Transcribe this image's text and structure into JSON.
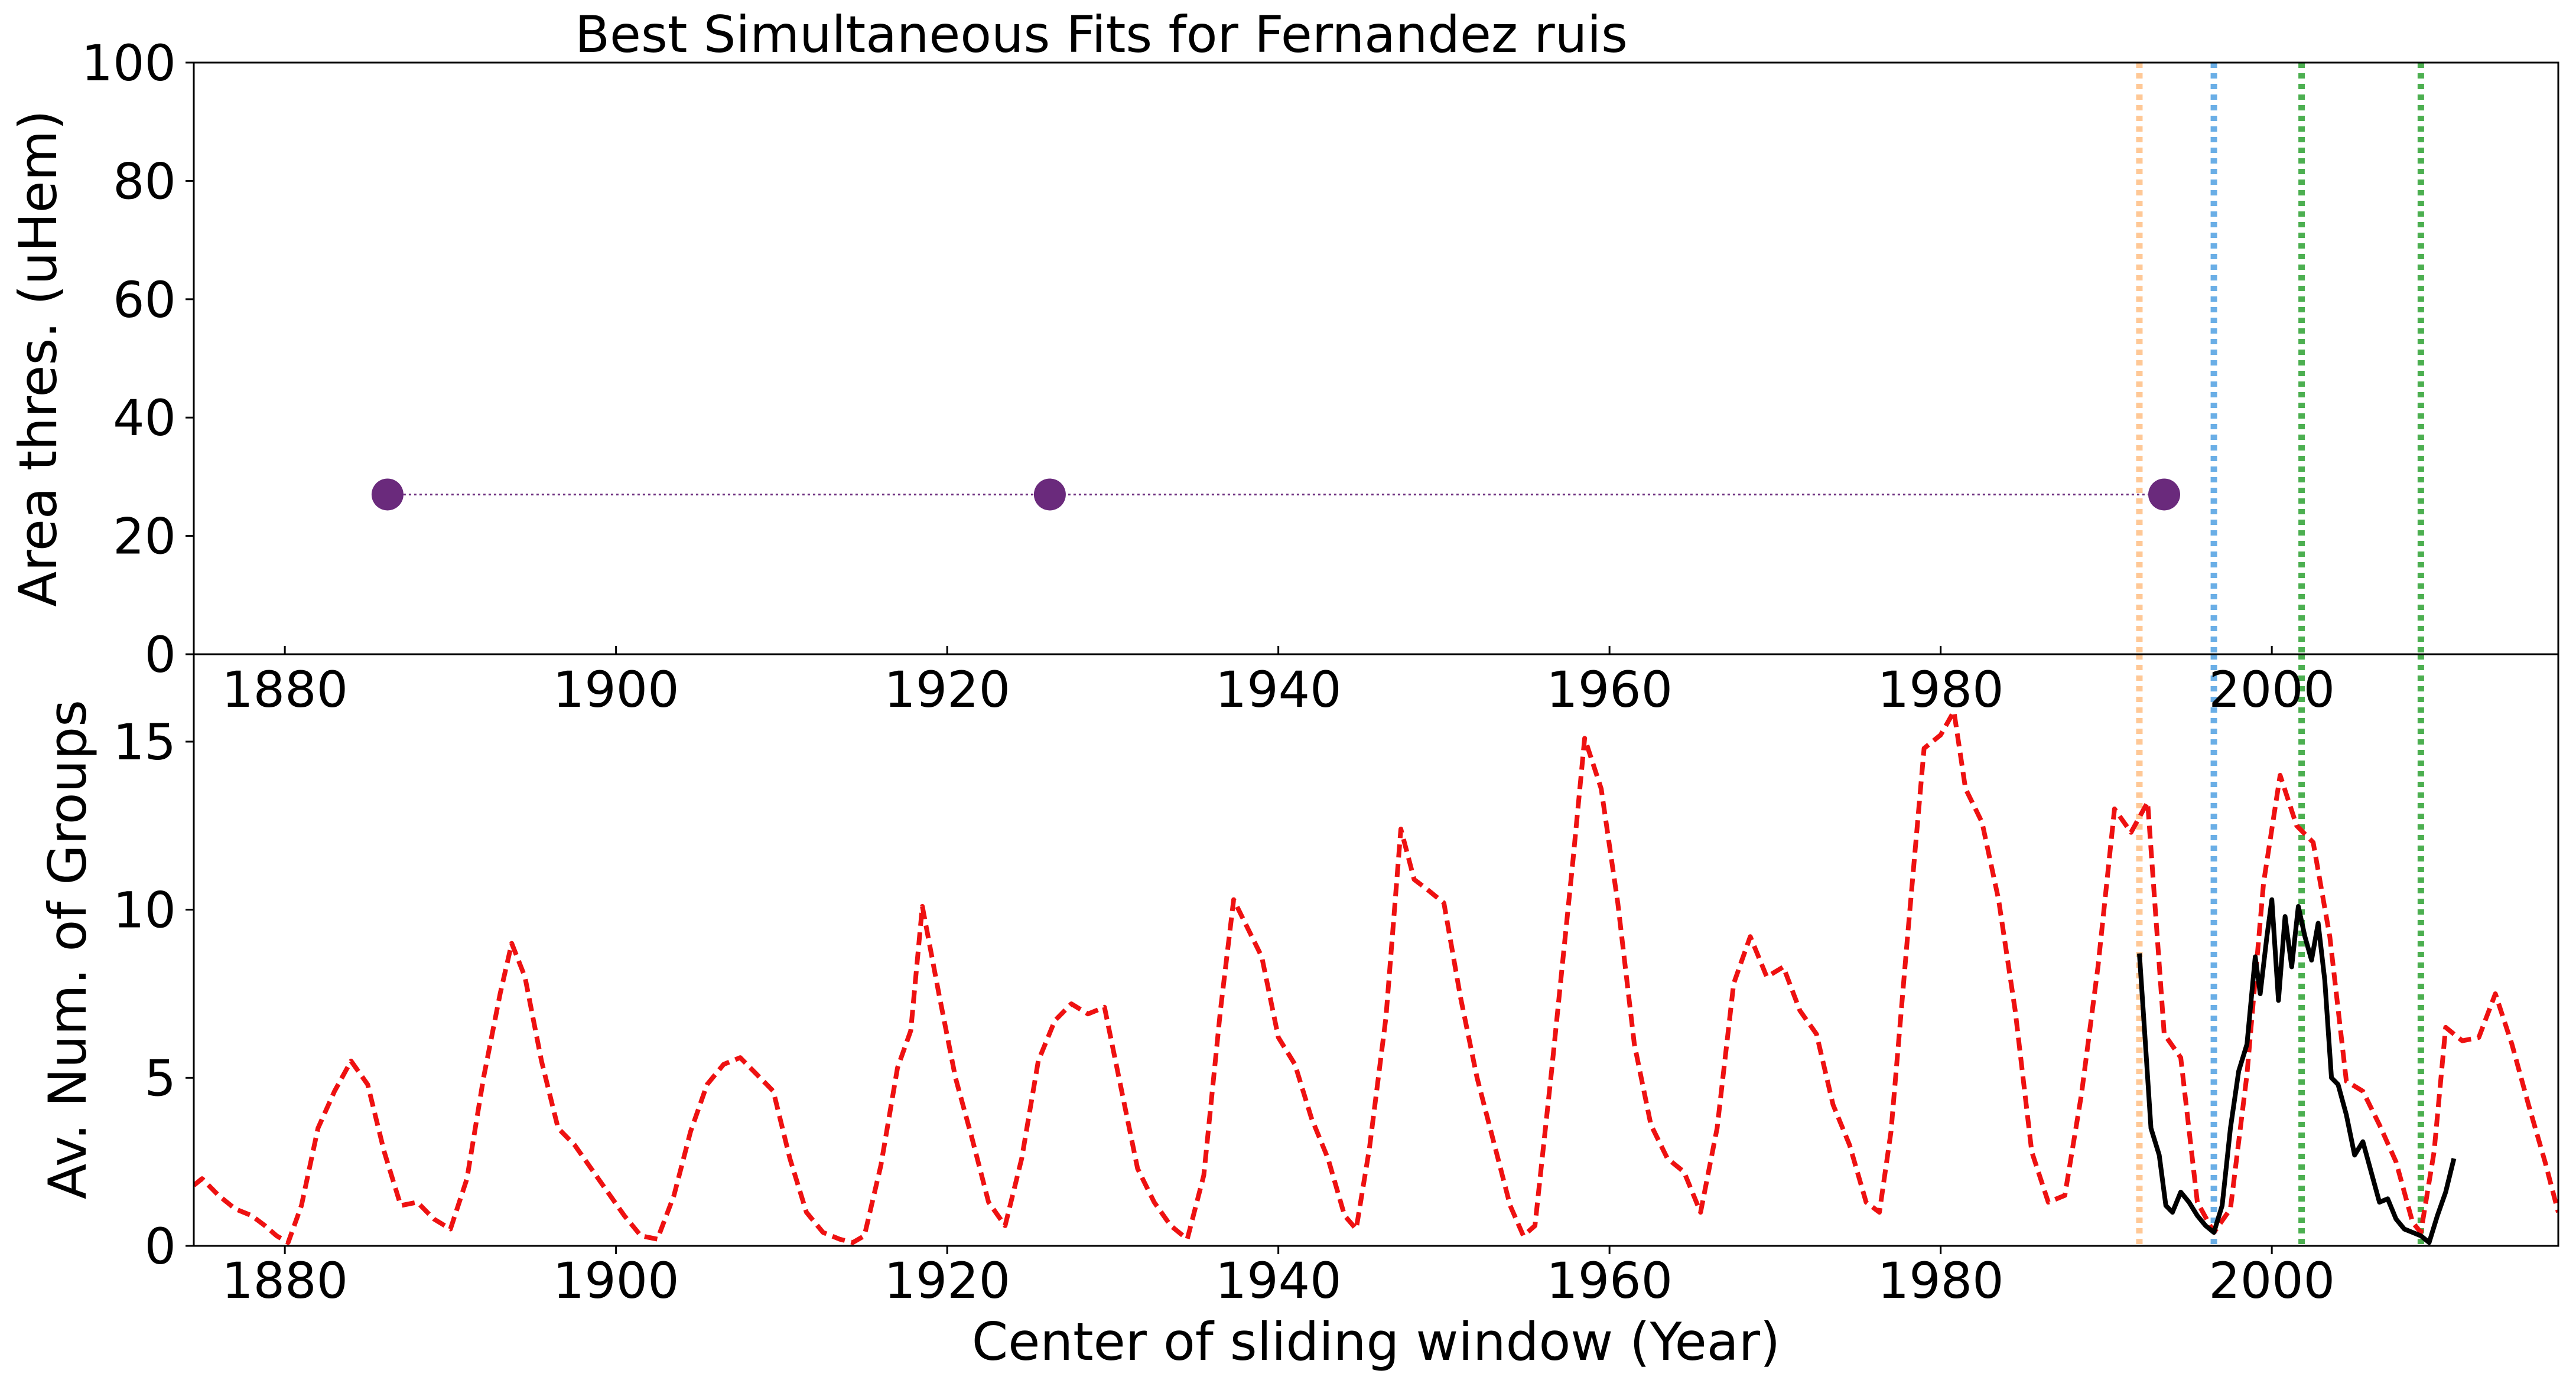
{
  "chart_data": [
    {
      "type": "scatter",
      "title": "Best Simultaneous Fits for Fernandez ruis",
      "xlabel": "",
      "ylabel": "Area thres. (uHem)",
      "xlim": [
        1874.5,
        2017.3
      ],
      "ylim": [
        0,
        100
      ],
      "x_ticks": [
        1880,
        1900,
        1920,
        1940,
        1960,
        1980,
        2000
      ],
      "x_tick_labels": [
        "1880",
        "1900",
        "1920",
        "1940",
        "1960",
        "1980",
        "2000"
      ],
      "y_ticks": [
        0,
        20,
        40,
        60,
        80,
        100
      ],
      "y_tick_labels": [
        "0",
        "20",
        "40",
        "60",
        "80",
        "100"
      ],
      "grid": false,
      "series": [
        {
          "x": [
            1886.2,
            1926.2,
            1993.5
          ],
          "y": [
            27,
            27,
            27
          ],
          "color": "#6a2a7c",
          "marker": "circle",
          "connect": "dotted"
        }
      ],
      "vlines": [
        {
          "x": 1992.0,
          "color": "#ffc896",
          "style": "dotted"
        },
        {
          "x": 1996.5,
          "color": "#6aaee6",
          "style": "dotted"
        },
        {
          "x": 2001.8,
          "color": "#4caf50",
          "style": "dotted"
        },
        {
          "x": 2009.0,
          "color": "#4caf50",
          "style": "dotted"
        }
      ]
    },
    {
      "type": "line",
      "title": "",
      "xlabel": "Center of sliding window (Year)",
      "ylabel": "Av. Num. of Groups",
      "xlim": [
        1874.5,
        2017.3
      ],
      "ylim": [
        0,
        17.6
      ],
      "x_ticks": [
        1880,
        1900,
        1920,
        1940,
        1960,
        1980,
        2000
      ],
      "x_tick_labels": [
        "1880",
        "1900",
        "1920",
        "1940",
        "1960",
        "1980",
        "2000"
      ],
      "y_ticks": [
        0,
        5,
        10,
        15
      ],
      "y_tick_labels": [
        "0",
        "5",
        "10",
        "15"
      ],
      "grid": false,
      "series": [
        {
          "color": "#ee1111",
          "style": "dashed",
          "x": [
            1874.5,
            1875,
            1876,
            1877,
            1878,
            1878.8,
            1879.5,
            1880.2,
            1881,
            1882,
            1883,
            1884,
            1885,
            1886,
            1887,
            1888,
            1889,
            1890,
            1891,
            1892,
            1893,
            1893.7,
            1894.5,
            1895.5,
            1896.5,
            1897.5,
            1898.5,
            1899.5,
            1900.5,
            1901.5,
            1902.5,
            1903.5,
            1904.5,
            1905.5,
            1906.5,
            1907.5,
            1908.5,
            1909.5,
            1910.5,
            1911.5,
            1912.5,
            1913.5,
            1914.3,
            1915,
            1916,
            1917,
            1917.8,
            1918.5,
            1919.5,
            1920.5,
            1921.5,
            1922.5,
            1923.5,
            1924.5,
            1925.5,
            1926.5,
            1927.5,
            1928.5,
            1929.5,
            1930.5,
            1931.5,
            1932.5,
            1933.5,
            1934.5,
            1935.5,
            1936.5,
            1937.3,
            1938,
            1939,
            1940,
            1941,
            1942,
            1943,
            1944,
            1944.7,
            1945.5,
            1946.5,
            1947.4,
            1948.2,
            1949,
            1950,
            1951,
            1952,
            1953,
            1954,
            1954.8,
            1955.5,
            1956.5,
            1957.8,
            1958.5,
            1959.5,
            1960.5,
            1961.5,
            1962.5,
            1963.5,
            1964.5,
            1965.5,
            1966.5,
            1967.5,
            1968.5,
            1969.5,
            1970.5,
            1971.5,
            1972.5,
            1973.5,
            1974.5,
            1975.5,
            1976.3,
            1977,
            1978,
            1979,
            1980,
            1980.8,
            1981.5,
            1982.5,
            1983.5,
            1984.5,
            1985.5,
            1986.5,
            1987.5,
            1988.5,
            1989.5,
            1990.5,
            1991.5,
            1992.5,
            1993.5,
            1994.5,
            1995.5,
            1996.5,
            1997.5,
            1998.5,
            1999.5,
            2000.5,
            2001.5,
            2002.5,
            2003.5,
            2004.5,
            2005.5,
            2006.5,
            2007.5,
            2008.5,
            2009,
            2009.8,
            2010.5,
            2011.5,
            2012.5,
            2013.5,
            2014.5,
            2015.5,
            2016.5,
            2017.3
          ],
          "y": [
            1.8,
            2.0,
            1.5,
            1.1,
            0.9,
            0.6,
            0.3,
            0.1,
            1.2,
            3.5,
            4.6,
            5.5,
            4.8,
            2.8,
            1.2,
            1.3,
            0.8,
            0.5,
            2.0,
            5.0,
            7.5,
            9.0,
            8.0,
            5.5,
            3.5,
            3.0,
            2.3,
            1.6,
            0.9,
            0.3,
            0.2,
            1.5,
            3.4,
            4.8,
            5.4,
            5.6,
            5.1,
            4.6,
            2.6,
            1.0,
            0.4,
            0.2,
            0.1,
            0.3,
            2.4,
            5.3,
            6.4,
            10.1,
            7.5,
            5.0,
            3.2,
            1.3,
            0.6,
            2.6,
            5.5,
            6.7,
            7.2,
            6.9,
            7.1,
            4.7,
            2.3,
            1.3,
            0.6,
            0.2,
            2.1,
            7.0,
            10.3,
            9.6,
            8.6,
            6.2,
            5.4,
            3.8,
            2.6,
            0.9,
            0.5,
            2.9,
            6.8,
            12.4,
            10.9,
            10.6,
            10.2,
            7.4,
            5.0,
            3.1,
            1.2,
            0.3,
            0.6,
            5.2,
            11.5,
            15.1,
            13.6,
            10.2,
            6.0,
            3.6,
            2.6,
            2.2,
            1.0,
            3.5,
            7.8,
            9.2,
            8.0,
            8.3,
            7.0,
            6.3,
            4.2,
            3.0,
            1.3,
            1.0,
            3.4,
            9.2,
            14.8,
            15.2,
            15.9,
            13.6,
            12.6,
            10.3,
            7.0,
            2.8,
            1.3,
            1.5,
            4.5,
            8.3,
            13.0,
            12.3,
            13.2,
            6.3,
            5.6,
            1.3,
            0.4,
            1.1,
            5.1,
            10.8,
            14.0,
            12.5,
            12.0,
            9.2,
            4.9,
            4.6,
            3.6,
            2.5,
            0.7,
            0.4,
            2.8,
            6.5,
            6.1,
            6.2,
            7.5,
            6.0,
            4.2,
            2.5,
            1.0
          ]
        },
        {
          "color": "#000000",
          "style": "solid",
          "x": [
            1992.0,
            1992.3,
            1992.7,
            1993.2,
            1993.6,
            1994.0,
            1994.5,
            1995.0,
            1995.5,
            1996.0,
            1996.5,
            1997.0,
            1997.5,
            1998.0,
            1998.5,
            1999.0,
            1999.3,
            1999.7,
            2000.0,
            2000.4,
            2000.8,
            2001.2,
            2001.6,
            2002.0,
            2002.4,
            2002.8,
            2003.2,
            2003.6,
            2004.0,
            2004.5,
            2005.0,
            2005.5,
            2006.0,
            2006.5,
            2007.0,
            2007.5,
            2008.0,
            2008.5,
            2009.0,
            2009.5,
            2010.0,
            2010.5,
            2011.0
          ],
          "y": [
            8.7,
            6.5,
            3.5,
            2.7,
            1.2,
            1.0,
            1.6,
            1.3,
            0.9,
            0.6,
            0.4,
            1.2,
            3.5,
            5.2,
            6.0,
            8.6,
            7.5,
            9.2,
            10.3,
            7.3,
            9.8,
            8.3,
            10.1,
            9.2,
            8.5,
            9.6,
            7.9,
            5.0,
            4.8,
            3.9,
            2.7,
            3.1,
            2.2,
            1.3,
            1.4,
            0.8,
            0.5,
            0.4,
            0.3,
            0.1,
            0.9,
            1.6,
            2.6
          ]
        }
      ],
      "vlines": [
        {
          "x": 1992.0,
          "color": "#ffc896",
          "style": "dotted"
        },
        {
          "x": 1996.5,
          "color": "#6aaee6",
          "style": "dotted"
        },
        {
          "x": 2001.8,
          "color": "#4caf50",
          "style": "dotted"
        },
        {
          "x": 2009.0,
          "color": "#4caf50",
          "style": "dotted"
        }
      ]
    }
  ]
}
